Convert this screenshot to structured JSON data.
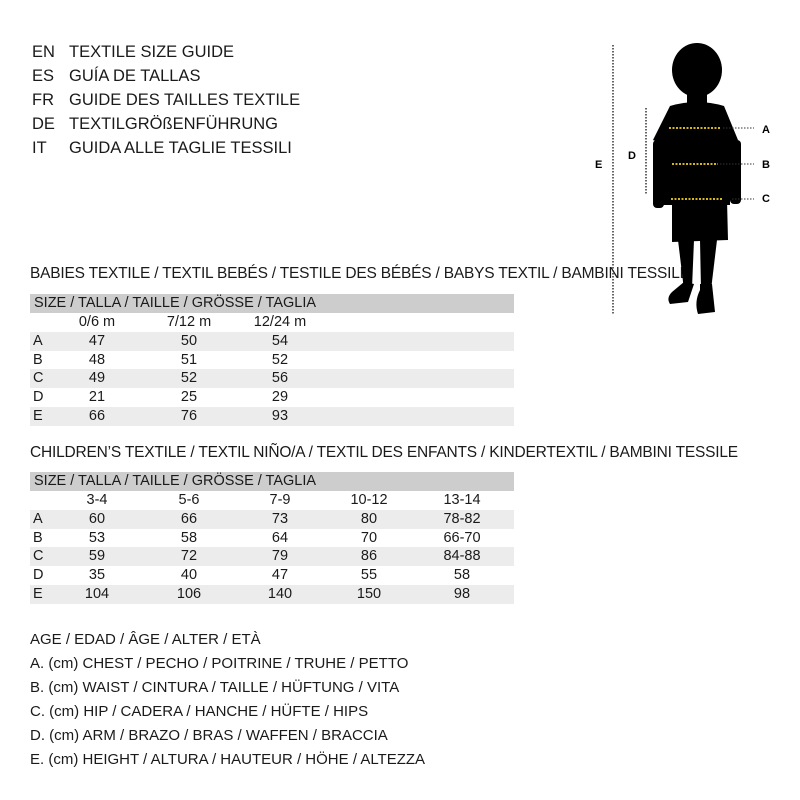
{
  "languages": [
    {
      "code": "EN",
      "title": "TEXTILE SIZE GUIDE"
    },
    {
      "code": "ES",
      "title": "GUÍA DE TALLAS"
    },
    {
      "code": "FR",
      "title": "GUIDE DES TAILLES TEXTILE"
    },
    {
      "code": "DE",
      "title": "TEXTILGRÖßENFÜHRUNG"
    },
    {
      "code": "IT",
      "title": "GUIDA ALLE TAGLIE TESSILI"
    }
  ],
  "babies": {
    "heading": "BABIES TEXTILE / TEXTIL BEBÉS / TESTILE DES BÉBÉS / BABYS TEXTIL / BAMBINI TESSILE",
    "size_label": "SIZE / TALLA / TAILLE / GRÖSSE / TAGLIA",
    "columns": [
      "0/6 m",
      "7/12 m",
      "12/24 m"
    ],
    "rows": [
      {
        "label": "A",
        "values": [
          "47",
          "50",
          "54"
        ]
      },
      {
        "label": "B",
        "values": [
          "48",
          "51",
          "52"
        ]
      },
      {
        "label": "C",
        "values": [
          "49",
          "52",
          "56"
        ]
      },
      {
        "label": "D",
        "values": [
          "21",
          "25",
          "29"
        ]
      },
      {
        "label": "E",
        "values": [
          "66",
          "76",
          "93"
        ]
      }
    ]
  },
  "children": {
    "heading": "CHILDREN’S TEXTILE / TEXTIL NIÑO/A / TEXTIL DES ENFANTS / KINDERTEXTIL / BAMBINI TESSILE",
    "size_label": "SIZE / TALLA / TAILLE / GRÖSSE / TAGLIA",
    "columns": [
      "3-4",
      "5-6",
      "7-9",
      "10-12",
      "13-14"
    ],
    "rows": [
      {
        "label": "A",
        "values": [
          "60",
          "66",
          "73",
          "80",
          "78-82"
        ]
      },
      {
        "label": "B",
        "values": [
          "53",
          "58",
          "64",
          "70",
          "66-70"
        ]
      },
      {
        "label": "C",
        "values": [
          "59",
          "72",
          "79",
          "86",
          "84-88"
        ]
      },
      {
        "label": "D",
        "values": [
          "35",
          "40",
          "47",
          "55",
          "58"
        ]
      },
      {
        "label": "E",
        "values": [
          "104",
          "106",
          "140",
          "150",
          "98"
        ]
      }
    ]
  },
  "legend": [
    "AGE / EDAD / ÂGE / ALTER / ETÀ",
    "A. (cm) CHEST / PECHO / POITRINE / TRUHE / PETTO",
    "B. (cm) WAIST / CINTURA / TAILLE / HÜFTUNG / VITA",
    "C. (cm) HIP / CADERA / HANCHE / HÜFTE / HIPS",
    "D. (cm) ARM / BRAZO / BRAS / WAFFEN / BRACCIA",
    "E. (cm) HEIGHT / ALTURA / HAUTEUR / HÖHE / ALTEZZA"
  ],
  "figure": {
    "labels": {
      "a": "A",
      "b": "B",
      "c": "C",
      "d": "D",
      "e": "E"
    },
    "measure_line_color": "#f2d21b"
  }
}
